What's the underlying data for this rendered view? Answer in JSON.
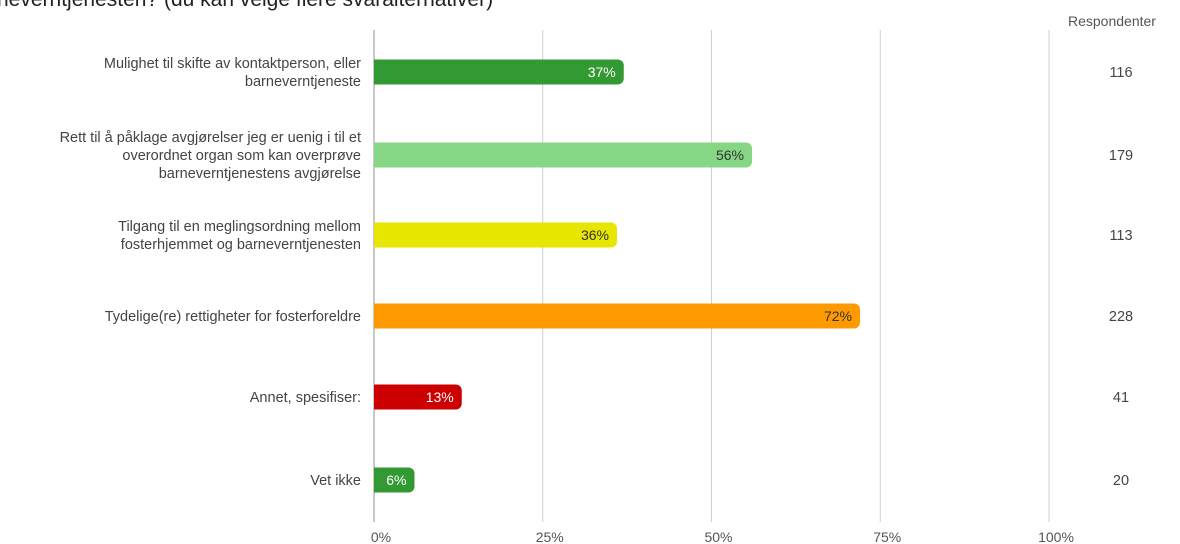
{
  "title": "rneverntjenesten? (du kan velge flere svaralternativer)",
  "respondents_header": "Respondenter",
  "chart_data": {
    "type": "bar",
    "orientation": "horizontal",
    "title": "rneverntjenesten? (du kan velge flere svaralternativer)",
    "xlabel": "",
    "ylabel": "",
    "xlim": [
      0,
      100
    ],
    "x_ticks": [
      "0%",
      "25%",
      "50%",
      "75%",
      "100%"
    ],
    "grid": true,
    "categories": [
      [
        "Mulighet til skifte av kontaktperson, eller",
        "barneverntjeneste"
      ],
      [
        "Rett til å påklage avgjørelser jeg er uenig i til et",
        "overordnet organ som kan overprøve",
        "barneverntjenestens avgjørelse"
      ],
      [
        "Tilgang til en meglingsordning mellom",
        "fosterhjemmet og barneverntjenesten"
      ],
      [
        "Tydelige(re) rettigheter for fosterforeldre"
      ],
      [
        "Annet, spesifiser:"
      ],
      [
        "Vet ikke"
      ]
    ],
    "values": [
      37,
      56,
      36,
      72,
      13,
      6
    ],
    "value_labels": [
      "37%",
      "56%",
      "36%",
      "72%",
      "13%",
      "6%"
    ],
    "respondents": [
      "116",
      "179",
      "113",
      "228",
      "41",
      "20"
    ],
    "colors": [
      "#339933",
      "#85d685",
      "#e6e600",
      "#ff9900",
      "#cc0000",
      "#339933"
    ],
    "label_colors": [
      "#ffffff",
      "#333333",
      "#333333",
      "#333333",
      "#ffffff",
      "#ffffff"
    ]
  }
}
